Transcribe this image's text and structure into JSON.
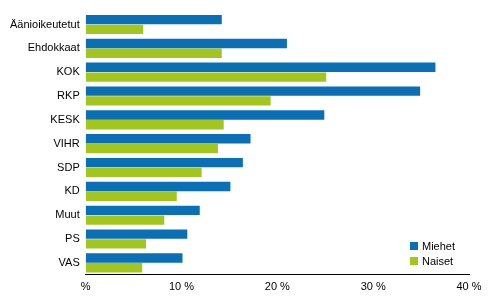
{
  "chart_data": {
    "type": "bar",
    "orientation": "horizontal",
    "categories": [
      "Äänioikeutetut",
      "Ehdokkaat",
      "KOK",
      "RKP",
      "KESK",
      "VIHR",
      "SDP",
      "KD",
      "Muut",
      "PS",
      "VAS"
    ],
    "series": [
      {
        "name": "Miehet",
        "color": "#0a6fb4",
        "values": [
          14.2,
          21.0,
          36.5,
          34.9,
          24.9,
          17.2,
          16.4,
          15.1,
          11.9,
          10.6,
          10.1
        ]
      },
      {
        "name": "Naiset",
        "color": "#a3c61e",
        "values": [
          6.0,
          14.2,
          25.1,
          19.3,
          14.4,
          13.8,
          12.1,
          9.5,
          8.2,
          6.3,
          5.9
        ]
      }
    ],
    "xlim": [
      0,
      40
    ],
    "xticks": [
      {
        "value": 0,
        "label": "%"
      },
      {
        "value": 10,
        "label": "10 %"
      },
      {
        "value": 20,
        "label": "20 %"
      },
      {
        "value": 30,
        "label": "30 %"
      },
      {
        "value": 40,
        "label": "40 %"
      }
    ],
    "grid": false,
    "legend": "lower right"
  }
}
